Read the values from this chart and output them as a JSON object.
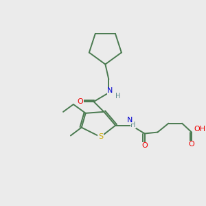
{
  "background_color": "#ebebeb",
  "bond_color": "#4a7a50",
  "atom_colors": {
    "N": "#0000cc",
    "O": "#ee0000",
    "S": "#ccaa00",
    "H": "#5a8a8a",
    "C": "#4a7a50"
  },
  "figsize": [
    3.0,
    3.0
  ],
  "dpi": 100
}
